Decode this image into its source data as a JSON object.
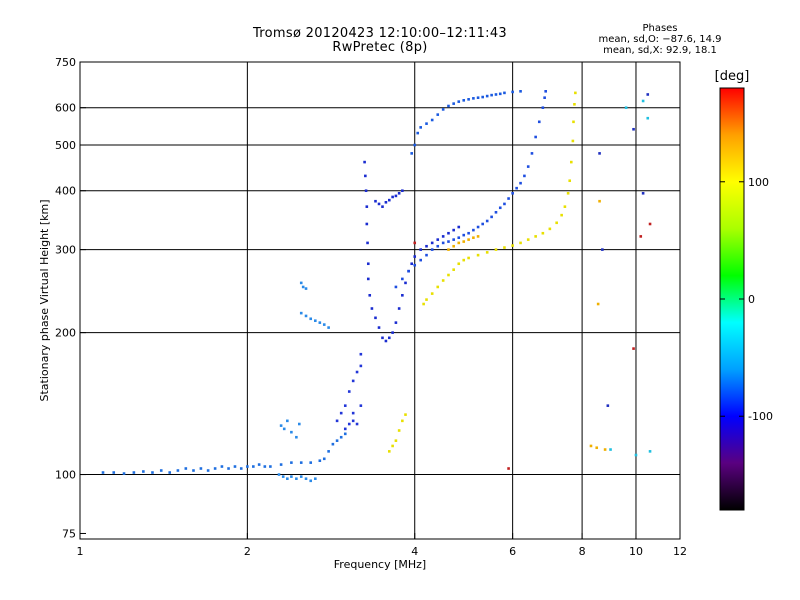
{
  "chart_data": {
    "type": "scatter",
    "title": "Tromsø 20120423 12:10:00–12:11:43",
    "subtitle": "RwPretec (8p)",
    "phases": {
      "heading": "Phases",
      "line_o": "mean, sd,O: −87.6, 14.9",
      "line_x": "mean, sd,X:  92.9, 18.1"
    },
    "xlabel": "Frequency [MHz]",
    "ylabel": "Stationary phase Virtual Height [km]",
    "x_scale": "log",
    "y_scale": "log",
    "xlim": [
      1,
      12
    ],
    "ylim": [
      73,
      750
    ],
    "x_ticks": [
      1,
      2,
      4,
      6,
      8,
      10,
      12
    ],
    "y_ticks": [
      75,
      100,
      200,
      300,
      400,
      500,
      600,
      750
    ],
    "x_grid": [
      2,
      4,
      6,
      8,
      10
    ],
    "y_grid": [
      100,
      200,
      300,
      400,
      500,
      600
    ],
    "grid": true,
    "colorbar": {
      "label": "[deg]",
      "range": [
        -180,
        180
      ],
      "ticks": [
        -100,
        0,
        100
      ],
      "colors": [
        "#000000",
        "#5a0080",
        "#0000ff",
        "#00a0ff",
        "#00ffff",
        "#00ff00",
        "#aaff00",
        "#ffff00",
        "#ffa000",
        "#ff0000"
      ]
    },
    "series": [
      {
        "color": "#1f6fe0",
        "points": [
          [
            1.1,
            101
          ],
          [
            1.15,
            101
          ],
          [
            1.2,
            100.5
          ],
          [
            1.25,
            101
          ],
          [
            1.3,
            101.5
          ],
          [
            1.35,
            101
          ],
          [
            1.4,
            102
          ],
          [
            1.45,
            101
          ],
          [
            1.5,
            102
          ],
          [
            1.55,
            103
          ],
          [
            1.6,
            102
          ],
          [
            1.65,
            103
          ],
          [
            1.7,
            102
          ],
          [
            1.75,
            103
          ],
          [
            1.8,
            104
          ],
          [
            1.85,
            103
          ],
          [
            1.9,
            104
          ],
          [
            1.95,
            103
          ],
          [
            2.0,
            104
          ],
          [
            2.05,
            104
          ],
          [
            2.1,
            105
          ],
          [
            2.15,
            104
          ],
          [
            2.2,
            104
          ],
          [
            2.3,
            105
          ],
          [
            2.4,
            106
          ],
          [
            2.5,
            106
          ],
          [
            2.6,
            106
          ],
          [
            2.7,
            107
          ],
          [
            2.75,
            108
          ],
          [
            2.8,
            112
          ],
          [
            2.85,
            116
          ],
          [
            2.9,
            118
          ],
          [
            2.95,
            120
          ],
          [
            3.0,
            122
          ]
        ]
      },
      {
        "color": "#2a8ae8",
        "points": [
          [
            2.28,
            100
          ],
          [
            2.32,
            99
          ],
          [
            2.36,
            98
          ],
          [
            2.4,
            99
          ],
          [
            2.45,
            98
          ],
          [
            2.5,
            99
          ],
          [
            2.55,
            98
          ],
          [
            2.6,
            97
          ],
          [
            2.65,
            98
          ],
          [
            2.3,
            127
          ],
          [
            2.33,
            125
          ],
          [
            2.36,
            130
          ],
          [
            2.4,
            123
          ],
          [
            2.45,
            120
          ],
          [
            2.48,
            128
          ],
          [
            2.5,
            255
          ],
          [
            2.52,
            250
          ],
          [
            2.55,
            248
          ],
          [
            2.5,
            220
          ],
          [
            2.55,
            217
          ],
          [
            2.6,
            214
          ],
          [
            2.65,
            212
          ],
          [
            2.7,
            210
          ],
          [
            2.75,
            208
          ],
          [
            2.8,
            205
          ]
        ]
      },
      {
        "color": "#2236d8",
        "points": [
          [
            2.9,
            130
          ],
          [
            2.95,
            135
          ],
          [
            3.0,
            140
          ],
          [
            3.05,
            150
          ],
          [
            3.1,
            158
          ],
          [
            3.15,
            165
          ],
          [
            3.2,
            170
          ],
          [
            3.2,
            180
          ],
          [
            3.1,
            130
          ],
          [
            3.15,
            128
          ],
          [
            3.0,
            125
          ],
          [
            3.05,
            128
          ],
          [
            3.1,
            135
          ],
          [
            3.2,
            140
          ]
        ]
      },
      {
        "color": "#1a2cd0",
        "points": [
          [
            3.25,
            460
          ],
          [
            3.26,
            430
          ],
          [
            3.27,
            400
          ],
          [
            3.28,
            370
          ],
          [
            3.28,
            340
          ],
          [
            3.29,
            310
          ],
          [
            3.3,
            280
          ],
          [
            3.3,
            260
          ],
          [
            3.32,
            240
          ],
          [
            3.35,
            225
          ],
          [
            3.4,
            215
          ],
          [
            3.45,
            205
          ],
          [
            3.5,
            195
          ],
          [
            3.55,
            192
          ],
          [
            3.6,
            195
          ],
          [
            3.65,
            200
          ],
          [
            3.7,
            210
          ],
          [
            3.75,
            225
          ],
          [
            3.8,
            240
          ],
          [
            3.85,
            255
          ],
          [
            3.9,
            270
          ],
          [
            3.95,
            280
          ],
          [
            4.0,
            290
          ],
          [
            4.1,
            300
          ],
          [
            4.2,
            305
          ],
          [
            4.3,
            310
          ],
          [
            4.4,
            315
          ],
          [
            4.5,
            320
          ],
          [
            4.6,
            325
          ],
          [
            4.7,
            330
          ],
          [
            4.8,
            335
          ],
          [
            3.4,
            380
          ],
          [
            3.45,
            375
          ],
          [
            3.5,
            370
          ],
          [
            3.55,
            378
          ],
          [
            3.6,
            382
          ],
          [
            3.65,
            388
          ],
          [
            3.7,
            390
          ],
          [
            3.75,
            395
          ],
          [
            3.8,
            400
          ]
        ]
      },
      {
        "color": "#1e4ee0",
        "points": [
          [
            3.7,
            250
          ],
          [
            3.8,
            260
          ],
          [
            3.9,
            270
          ],
          [
            4.0,
            278
          ],
          [
            4.1,
            285
          ],
          [
            4.2,
            292
          ],
          [
            4.3,
            300
          ],
          [
            4.4,
            305
          ],
          [
            4.5,
            310
          ],
          [
            4.6,
            312
          ],
          [
            4.7,
            315
          ],
          [
            4.8,
            318
          ],
          [
            4.9,
            322
          ],
          [
            5.0,
            325
          ],
          [
            5.1,
            330
          ],
          [
            5.2,
            335
          ],
          [
            5.3,
            340
          ],
          [
            5.4,
            345
          ],
          [
            5.5,
            352
          ],
          [
            5.6,
            360
          ],
          [
            5.7,
            368
          ],
          [
            5.8,
            375
          ],
          [
            5.9,
            385
          ],
          [
            6.0,
            395
          ],
          [
            6.1,
            405
          ],
          [
            6.2,
            415
          ],
          [
            6.3,
            430
          ],
          [
            6.4,
            450
          ],
          [
            6.5,
            480
          ],
          [
            6.6,
            520
          ],
          [
            6.7,
            560
          ],
          [
            6.8,
            600
          ],
          [
            6.85,
            630
          ],
          [
            6.88,
            650
          ]
        ]
      },
      {
        "color": "#1a5ae0",
        "points": [
          [
            3.95,
            480
          ],
          [
            4.0,
            500
          ],
          [
            4.05,
            530
          ],
          [
            4.1,
            545
          ],
          [
            4.2,
            555
          ],
          [
            4.3,
            565
          ],
          [
            4.4,
            580
          ],
          [
            4.5,
            595
          ],
          [
            4.6,
            605
          ],
          [
            4.7,
            612
          ],
          [
            4.8,
            618
          ],
          [
            4.9,
            622
          ],
          [
            5.0,
            625
          ],
          [
            5.1,
            628
          ],
          [
            5.2,
            630
          ],
          [
            5.3,
            632
          ],
          [
            5.4,
            635
          ],
          [
            5.5,
            638
          ],
          [
            5.6,
            640
          ],
          [
            5.7,
            642
          ],
          [
            5.8,
            645
          ],
          [
            6.0,
            648
          ],
          [
            6.2,
            650
          ]
        ]
      },
      {
        "color": "#e8e000",
        "points": [
          [
            4.15,
            230
          ],
          [
            4.2,
            235
          ],
          [
            4.3,
            242
          ],
          [
            4.4,
            250
          ],
          [
            4.5,
            258
          ],
          [
            4.6,
            265
          ],
          [
            4.7,
            272
          ],
          [
            4.8,
            280
          ],
          [
            4.9,
            285
          ],
          [
            5.0,
            288
          ],
          [
            5.2,
            292
          ],
          [
            5.4,
            296
          ],
          [
            5.6,
            300
          ],
          [
            5.8,
            303
          ],
          [
            6.0,
            306
          ],
          [
            6.2,
            310
          ],
          [
            6.4,
            315
          ],
          [
            6.6,
            320
          ],
          [
            6.8,
            325
          ],
          [
            7.0,
            332
          ],
          [
            7.2,
            342
          ],
          [
            7.35,
            355
          ],
          [
            7.45,
            370
          ],
          [
            7.55,
            395
          ],
          [
            7.6,
            420
          ],
          [
            7.65,
            460
          ],
          [
            7.7,
            510
          ],
          [
            7.72,
            560
          ],
          [
            7.75,
            610
          ],
          [
            7.78,
            645
          ],
          [
            3.6,
            112
          ],
          [
            3.65,
            115
          ],
          [
            3.7,
            118
          ],
          [
            3.75,
            124
          ],
          [
            3.8,
            130
          ],
          [
            3.85,
            134
          ]
        ]
      },
      {
        "color": "#f0b000",
        "points": [
          [
            4.6,
            300
          ],
          [
            4.7,
            305
          ],
          [
            4.8,
            310
          ],
          [
            4.9,
            312
          ],
          [
            5.0,
            315
          ],
          [
            5.1,
            318
          ],
          [
            5.2,
            320
          ],
          [
            8.3,
            115
          ],
          [
            8.5,
            114
          ],
          [
            8.8,
            113
          ],
          [
            8.6,
            380
          ],
          [
            8.55,
            230
          ]
        ]
      },
      {
        "color": "#c02020",
        "points": [
          [
            10.2,
            320
          ],
          [
            10.6,
            340
          ],
          [
            5.9,
            103
          ],
          [
            9.9,
            185
          ],
          [
            4.0,
            310
          ]
        ]
      },
      {
        "color": "#20c0e0",
        "points": [
          [
            10.3,
            620
          ],
          [
            10.5,
            570
          ],
          [
            9.6,
            600
          ],
          [
            10.6,
            112
          ],
          [
            9.0,
            113
          ],
          [
            10.0,
            110
          ]
        ]
      },
      {
        "color": "#2030c0",
        "points": [
          [
            9.9,
            540
          ],
          [
            10.3,
            395
          ],
          [
            10.5,
            640
          ],
          [
            8.6,
            480
          ],
          [
            8.7,
            300
          ],
          [
            8.9,
            140
          ]
        ]
      }
    ]
  }
}
